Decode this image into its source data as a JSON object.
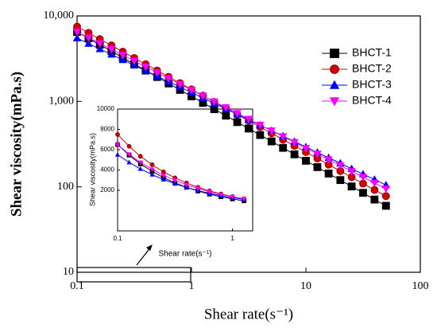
{
  "chart_data": {
    "type": "line",
    "xlabel": "Shear rate(s⁻¹)",
    "ylabel": "Shear viscosity(mPa.s)",
    "xscale": "log",
    "yscale": "log",
    "xlim": [
      0.1,
      100
    ],
    "xticks": [
      0.1,
      1,
      10,
      100
    ],
    "ylim": [
      10,
      10000
    ],
    "yticks": [
      10,
      100,
      {
        "value": 1000,
        "label": "1,000"
      },
      {
        "value": 10000,
        "label": "10,000"
      }
    ],
    "legend": "upper right",
    "x": [
      0.1,
      0.126,
      0.158,
      0.2,
      0.251,
      0.316,
      0.398,
      0.501,
      0.631,
      0.794,
      1,
      1.26,
      1.58,
      2,
      2.51,
      3.16,
      3.98,
      5.01,
      6.31,
      7.94,
      10,
      12.6,
      15.8,
      20,
      25.1,
      31.6,
      39.8,
      50.1
    ],
    "series": [
      {
        "name": "BHCT-1",
        "color": "#000000",
        "marker": "square",
        "values": [
          6501,
          5466,
          4595,
          3863,
          3247,
          2729,
          2294,
          1929,
          1621,
          1363,
          1146,
          963,
          810,
          681,
          572,
          481,
          404,
          340,
          286,
          240,
          202,
          170,
          143,
          120,
          101,
          85,
          71,
          60
        ]
      },
      {
        "name": "BHCT-2",
        "color": "#d40000",
        "marker": "circle",
        "values": [
          7499,
          6334,
          5347,
          4515,
          3813,
          3219,
          2719,
          2296,
          1939,
          1637,
          1382,
          1167,
          985,
          832,
          703,
          593,
          501,
          423,
          357,
          302,
          255,
          215,
          182,
          153,
          130,
          109,
          92,
          78
        ]
      },
      {
        "name": "BHCT-3",
        "color": "#0000ff",
        "marker": "triangle-up",
        "values": [
          5500,
          4751,
          4104,
          3544,
          3060,
          2643,
          2282,
          1971,
          1703,
          1471,
          1270,
          1097,
          947,
          818,
          707,
          610,
          527,
          455,
          393,
          339,
          293,
          253,
          219,
          189,
          163,
          141,
          122,
          105
        ]
      },
      {
        "name": "BHCT-4",
        "color": "#ff00ff",
        "marker": "triangle-down",
        "values": [
          6500,
          5558,
          4753,
          4064,
          3475,
          2972,
          2542,
          2173,
          1858,
          1589,
          1359,
          1162,
          994,
          850,
          727,
          622,
          531,
          454,
          389,
          332,
          284,
          243,
          208,
          178,
          152,
          130,
          111,
          95
        ]
      }
    ],
    "inset": {
      "xlabel": "Shear rate(s⁻¹)",
      "ylabel": "Shear viscosity(mPa.s)",
      "xscale": "log",
      "xlim": [
        0.1,
        1.5
      ],
      "xticks": [
        0.1,
        1
      ],
      "ylim": [
        -2000,
        10000
      ],
      "yticks": [
        2000,
        4000,
        6000,
        8000,
        10000
      ]
    }
  }
}
